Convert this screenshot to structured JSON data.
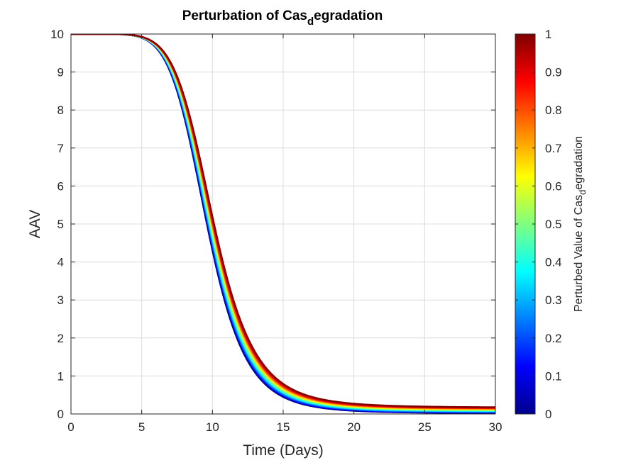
{
  "chart_data": {
    "type": "line",
    "title": {
      "main": "Perturbation of Cas",
      "sub": "d",
      "tail": "egradation"
    },
    "xlabel": "Time (Days)",
    "ylabel": "AAV",
    "xlim": [
      0,
      30
    ],
    "ylim": [
      0,
      10
    ],
    "xticks": [
      "0",
      "5",
      "10",
      "15",
      "20",
      "25",
      "30"
    ],
    "yticks": [
      "0",
      "1",
      "2",
      "3",
      "4",
      "5",
      "6",
      "7",
      "8",
      "9",
      "10"
    ],
    "grid": true,
    "colormap": "jet",
    "series_count": 40,
    "curve_family": {
      "initial_value": 10,
      "midpoint_day_at_min": 9.6,
      "midpoint_day_at_max": 10.1,
      "final_value_at_min": 0.02,
      "final_value_at_max": 0.17
    },
    "colorbar": {
      "label": {
        "main": "Perturbed Value of Cas",
        "sub": "d",
        "tail": "egradation"
      },
      "lim": [
        0,
        1
      ],
      "ticks": [
        "0",
        "0.1",
        "0.2",
        "0.3",
        "0.4",
        "0.5",
        "0.6",
        "0.7",
        "0.8",
        "0.9",
        "1"
      ]
    }
  }
}
